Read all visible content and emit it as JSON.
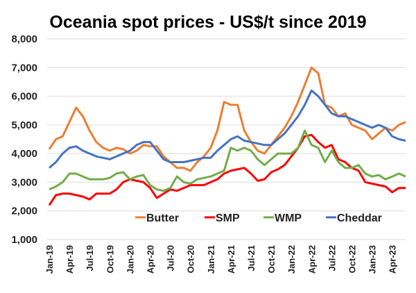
{
  "chart_data": {
    "type": "line",
    "title": "Oceania spot prices - US$/t since 2019",
    "xlabel": "",
    "ylabel": "",
    "ylim": [
      1000,
      8000
    ],
    "yticks": [
      "1,000",
      "2,000",
      "3,000",
      "4,000",
      "5,000",
      "6,000",
      "7,000",
      "8,000"
    ],
    "ytick_values": [
      1000,
      2000,
      3000,
      4000,
      5000,
      6000,
      7000,
      8000
    ],
    "grid": true,
    "legend_position": "bottom-inside",
    "x": [
      "Jan-19",
      "Feb-19",
      "Mar-19",
      "Apr-19",
      "May-19",
      "Jun-19",
      "Jul-19",
      "Aug-19",
      "Sep-19",
      "Oct-19",
      "Nov-19",
      "Dec-19",
      "Jan-20",
      "Feb-20",
      "Mar-20",
      "Apr-20",
      "May-20",
      "Jun-20",
      "Jul-20",
      "Aug-20",
      "Sep-20",
      "Oct-20",
      "Nov-20",
      "Dec-20",
      "Jan-21",
      "Feb-21",
      "Mar-21",
      "Apr-21",
      "May-21",
      "Jun-21",
      "Jul-21",
      "Aug-21",
      "Sep-21",
      "Oct-21",
      "Nov-21",
      "Dec-21",
      "Jan-22",
      "Feb-22",
      "Mar-22",
      "Apr-22",
      "May-22",
      "Jun-22",
      "Jul-22",
      "Aug-22",
      "Sep-22",
      "Oct-22",
      "Nov-22",
      "Dec-22",
      "Jan-23",
      "Feb-23",
      "Mar-23",
      "Apr-23",
      "May-23",
      "Jun-23"
    ],
    "xticks": [
      "Jan-19",
      "Apr-19",
      "Jul-19",
      "Oct-19",
      "Jan-20",
      "Apr-20",
      "Jul-20",
      "Oct-20",
      "Jan-21",
      "Apr-21",
      "Jul-21",
      "Oct-21",
      "Jan-22",
      "Apr-22",
      "Jul-22",
      "Oct-22",
      "Jan-23",
      "Apr-23"
    ],
    "series": [
      {
        "name": "Butter",
        "color": "#ED7D31",
        "values": [
          4150,
          4500,
          4600,
          5100,
          5600,
          5300,
          4800,
          4400,
          4200,
          4100,
          4200,
          4150,
          4000,
          4100,
          4300,
          4250,
          4250,
          3900,
          3700,
          3500,
          3500,
          3400,
          3700,
          3900,
          4200,
          4800,
          5800,
          5700,
          5700,
          4800,
          4400,
          4100,
          4000,
          4300,
          4600,
          4900,
          5300,
          5800,
          6400,
          7000,
          6800,
          5700,
          5600,
          5300,
          5400,
          5000,
          4900,
          4800,
          4500,
          4700,
          4900,
          4800,
          5000,
          5100
        ]
      },
      {
        "name": "SMP",
        "color": "#FF0000",
        "values": [
          2200,
          2550,
          2600,
          2600,
          2550,
          2500,
          2400,
          2600,
          2600,
          2600,
          2750,
          3000,
          3100,
          3050,
          3000,
          2800,
          2450,
          2600,
          2750,
          2700,
          2800,
          2900,
          2900,
          2900,
          3000,
          3100,
          3300,
          3400,
          3450,
          3500,
          3300,
          3050,
          3100,
          3350,
          3450,
          3600,
          3900,
          4200,
          4600,
          4650,
          4400,
          4200,
          4300,
          3800,
          3700,
          3500,
          3400,
          3000,
          2950,
          2900,
          2850,
          2650,
          2800,
          2800
        ]
      },
      {
        "name": "WMP",
        "color": "#70AD47",
        "values": [
          2750,
          2850,
          3000,
          3300,
          3300,
          3200,
          3100,
          3100,
          3100,
          3150,
          3300,
          3350,
          3100,
          3200,
          3250,
          2900,
          2750,
          2700,
          2800,
          3200,
          3000,
          2950,
          3100,
          3150,
          3200,
          3300,
          3400,
          4200,
          4100,
          4200,
          4100,
          3800,
          3600,
          3800,
          4000,
          4000,
          4000,
          4200,
          4800,
          4300,
          4200,
          3700,
          4100,
          3700,
          3500,
          3500,
          3600,
          3300,
          3200,
          3250,
          3100,
          3200,
          3300,
          3200
        ]
      },
      {
        "name": "Cheddar",
        "color": "#4472C4",
        "values": [
          3500,
          3700,
          4000,
          4200,
          4250,
          4100,
          4000,
          3900,
          3850,
          3800,
          3900,
          4000,
          4100,
          4300,
          4400,
          4400,
          4100,
          3800,
          3700,
          3700,
          3700,
          3750,
          3800,
          3850,
          3850,
          4100,
          4300,
          4500,
          4600,
          4450,
          4400,
          4350,
          4300,
          4300,
          4500,
          4700,
          5000,
          5300,
          5700,
          6200,
          6000,
          5700,
          5400,
          5300,
          5300,
          5200,
          5100,
          5000,
          4900,
          5000,
          4900,
          4600,
          4500,
          4450
        ]
      }
    ]
  }
}
